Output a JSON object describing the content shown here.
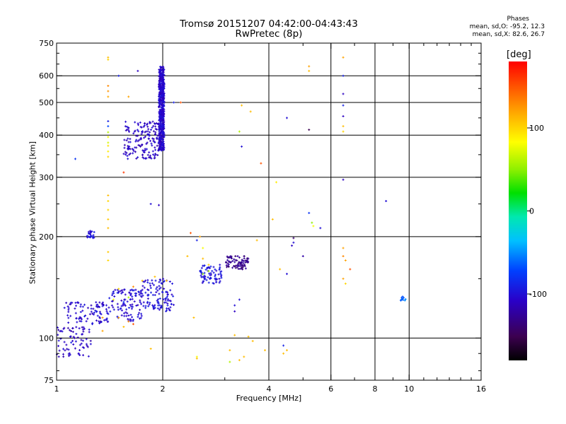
{
  "chart_data": {
    "type": "scatter",
    "title": "Tromsø 20151207 04:42:00-04:43:43",
    "subtitle": "RwPretec (8p)",
    "stats": {
      "heading": "Phases",
      "o_mode": "mean, sd,O: -95.2, 12.3",
      "x_mode": "mean, sd,X:  82.6, 26.7"
    },
    "xlabel": "Frequency [MHz]",
    "ylabel": "Stationary phase Virtual Height [km]",
    "x_scale": "log",
    "y_scale": "log",
    "xlim": [
      1,
      16
    ],
    "ylim": [
      75,
      750
    ],
    "x_ticks": [
      1,
      2,
      4,
      6,
      8,
      10,
      16
    ],
    "x_tick_labels": [
      "1",
      "2",
      "4",
      "6",
      "8",
      "10",
      "16"
    ],
    "y_ticks": [
      75,
      100,
      200,
      300,
      400,
      500,
      600,
      750
    ],
    "y_tick_labels": [
      "75",
      "100",
      "200",
      "300",
      "400",
      "500",
      "600",
      "750"
    ],
    "grid": true,
    "colorbar": {
      "label": "[deg]",
      "range": [
        -180,
        180
      ],
      "ticks": [
        -100,
        0,
        100
      ],
      "tick_labels": [
        "-100",
        "0",
        "100"
      ]
    },
    "clusters": [
      {
        "x": [
          1.95,
          2.02
        ],
        "y": [
          360,
          640
        ],
        "n": 520,
        "phase": -105
      },
      {
        "x": [
          1.55,
          1.95
        ],
        "y": [
          340,
          440
        ],
        "n": 160,
        "phase": -108
      },
      {
        "x": [
          1.0,
          1.25
        ],
        "y": [
          88,
          108
        ],
        "n": 70,
        "phase": -110
      },
      {
        "x": [
          1.05,
          1.4
        ],
        "y": [
          110,
          128
        ],
        "n": 90,
        "phase": -105
      },
      {
        "x": [
          1.4,
          1.75
        ],
        "y": [
          112,
          140
        ],
        "n": 110,
        "phase": -102
      },
      {
        "x": [
          1.75,
          2.15
        ],
        "y": [
          120,
          150
        ],
        "n": 110,
        "phase": -100
      },
      {
        "x": [
          2.55,
          2.95
        ],
        "y": [
          145,
          165
        ],
        "n": 70,
        "phase": -98
      },
      {
        "x": [
          3.0,
          3.5
        ],
        "y": [
          160,
          175
        ],
        "n": 80,
        "phase": -130
      },
      {
        "x": [
          1.22,
          1.28
        ],
        "y": [
          198,
          208
        ],
        "n": 22,
        "phase": -100
      },
      {
        "x": [
          9.4,
          9.8
        ],
        "y": [
          129,
          133
        ],
        "n": 10,
        "phase": -60
      }
    ],
    "points": [
      [
        1.4,
        680,
        110
      ],
      [
        1.4,
        670,
        100
      ],
      [
        1.4,
        560,
        130
      ],
      [
        1.4,
        540,
        125
      ],
      [
        1.4,
        520,
        118
      ],
      [
        1.4,
        440,
        -90
      ],
      [
        1.4,
        425,
        -70
      ],
      [
        1.4,
        408,
        60
      ],
      [
        1.4,
        395,
        80
      ],
      [
        1.4,
        380,
        70
      ],
      [
        1.4,
        372,
        95
      ],
      [
        1.4,
        358,
        90
      ],
      [
        1.4,
        345,
        100
      ],
      [
        1.5,
        600,
        -90
      ],
      [
        1.6,
        520,
        120
      ],
      [
        1.7,
        620,
        -110
      ],
      [
        1.55,
        310,
        160
      ],
      [
        1.13,
        340,
        -80
      ],
      [
        1.4,
        265,
        110
      ],
      [
        1.4,
        255,
        100
      ],
      [
        1.4,
        240,
        100
      ],
      [
        1.4,
        225,
        105
      ],
      [
        1.4,
        212,
        110
      ],
      [
        1.4,
        180,
        105
      ],
      [
        1.4,
        170,
        100
      ],
      [
        1.85,
        250,
        -100
      ],
      [
        1.95,
        248,
        -110
      ],
      [
        2.15,
        500,
        -90
      ],
      [
        2.25,
        500,
        150
      ],
      [
        3.35,
        490,
        110
      ],
      [
        3.55,
        470,
        110
      ],
      [
        3.3,
        410,
        60
      ],
      [
        3.35,
        370,
        -100
      ],
      [
        3.8,
        330,
        150
      ],
      [
        4.2,
        290,
        90
      ],
      [
        4.5,
        450,
        -100
      ],
      [
        5.2,
        415,
        -150
      ],
      [
        5.2,
        620,
        110
      ],
      [
        5.2,
        640,
        120
      ],
      [
        6.5,
        680,
        120
      ],
      [
        6.5,
        600,
        -90
      ],
      [
        6.5,
        530,
        -110
      ],
      [
        6.5,
        490,
        -90
      ],
      [
        6.5,
        455,
        -110
      ],
      [
        6.5,
        425,
        110
      ],
      [
        6.5,
        410,
        100
      ],
      [
        6.5,
        295,
        -110
      ],
      [
        8.6,
        255,
        -100
      ],
      [
        5.2,
        235,
        -80
      ],
      [
        5.3,
        220,
        50
      ],
      [
        5.35,
        215,
        80
      ],
      [
        5.6,
        212,
        -100
      ],
      [
        4.1,
        225,
        110
      ],
      [
        4.7,
        198,
        -140
      ],
      [
        4.7,
        192,
        -100
      ],
      [
        4.65,
        188,
        -110
      ],
      [
        5.0,
        175,
        -120
      ],
      [
        6.5,
        185,
        120
      ],
      [
        6.5,
        175,
        130
      ],
      [
        6.6,
        170,
        120
      ],
      [
        6.8,
        160,
        150
      ],
      [
        6.5,
        150,
        120
      ],
      [
        6.6,
        145,
        100
      ],
      [
        4.5,
        155,
        -100
      ],
      [
        4.3,
        160,
        110
      ],
      [
        3.7,
        195,
        110
      ],
      [
        2.4,
        205,
        150
      ],
      [
        2.55,
        200,
        120
      ],
      [
        2.5,
        195,
        -90
      ],
      [
        2.6,
        185,
        80
      ],
      [
        2.35,
        175,
        110
      ],
      [
        2.6,
        172,
        110
      ],
      [
        2.7,
        165,
        100
      ],
      [
        2.7,
        158,
        60
      ],
      [
        2.6,
        155,
        50
      ],
      [
        3.3,
        130,
        -100
      ],
      [
        3.2,
        125,
        -100
      ],
      [
        3.2,
        120,
        -110
      ],
      [
        2.45,
        115,
        110
      ],
      [
        1.3,
        120,
        -90
      ],
      [
        1.35,
        115,
        120
      ],
      [
        1.5,
        115,
        120
      ],
      [
        1.6,
        112,
        130
      ],
      [
        1.65,
        110,
        150
      ],
      [
        1.55,
        108,
        110
      ],
      [
        1.35,
        105,
        120
      ],
      [
        1.25,
        96,
        -100
      ],
      [
        1.1,
        97,
        -90
      ],
      [
        1.85,
        93,
        110
      ],
      [
        2.5,
        88,
        80
      ],
      [
        2.5,
        87,
        110
      ],
      [
        3.1,
        92,
        110
      ],
      [
        3.1,
        85,
        60
      ],
      [
        3.3,
        86,
        110
      ],
      [
        3.4,
        88,
        110
      ],
      [
        3.5,
        101,
        110
      ],
      [
        3.6,
        98,
        110
      ],
      [
        3.2,
        102,
        110
      ],
      [
        3.9,
        92,
        110
      ],
      [
        4.4,
        95,
        -90
      ],
      [
        4.5,
        92,
        110
      ],
      [
        4.4,
        90,
        110
      ],
      [
        1.9,
        152,
        110
      ],
      [
        2.05,
        148,
        110
      ],
      [
        1.75,
        148,
        110
      ],
      [
        1.65,
        142,
        130
      ],
      [
        1.5,
        140,
        100
      ],
      [
        1.45,
        130,
        80
      ],
      [
        1.55,
        128,
        -80
      ],
      [
        1.6,
        132,
        60
      ],
      [
        1.2,
        116,
        -90
      ]
    ]
  }
}
